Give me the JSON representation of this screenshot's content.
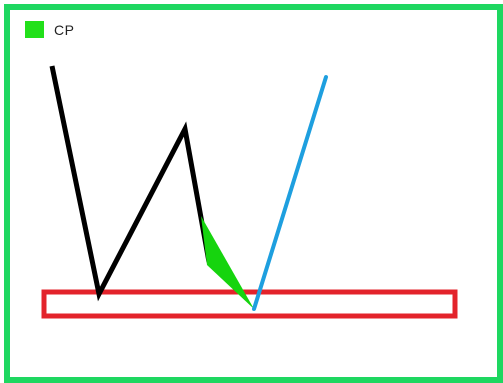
{
  "legend": {
    "label": "CP",
    "swatch_color": "#22e01a"
  },
  "colors": {
    "frame": "#1ed760",
    "black_path": "#000000",
    "blue_path": "#1e9fdf",
    "green_wedge": "#16d40e",
    "red_box": "#e3232b"
  }
}
